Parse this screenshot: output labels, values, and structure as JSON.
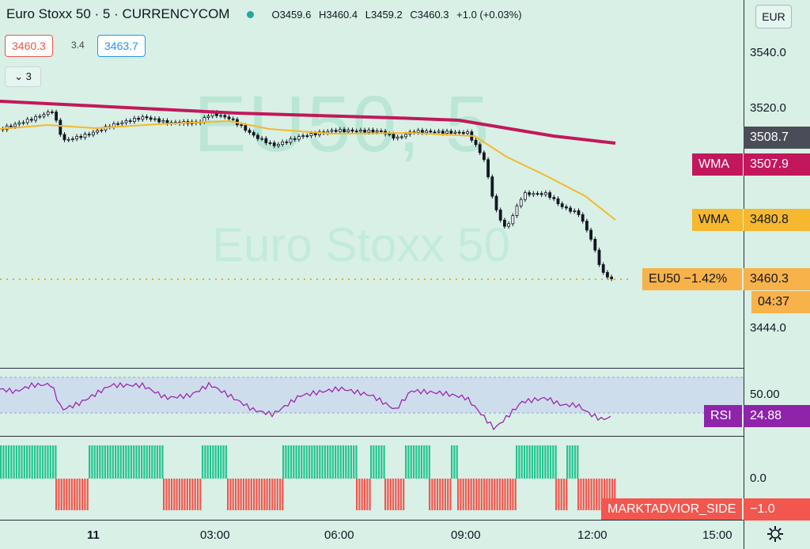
{
  "header": {
    "title": "Euro Stoxx 50 · 5 · CURRENCYCOM",
    "ohlc": {
      "o": "3459.6",
      "h": "3460.4",
      "l": "3459.2",
      "c": "3460.3",
      "change": "+1.0 (+0.03%)"
    },
    "o_label": "O",
    "h_label": "H",
    "l_label": "L",
    "c_label": "C"
  },
  "quote": {
    "bid": "3460.3",
    "spread": "3.4",
    "ask": "3463.7"
  },
  "collapse_label": "3",
  "watermark": {
    "symbol": "EU50, 5",
    "name": "Euro Stoxx 50"
  },
  "currency": "EUR",
  "price_axis": {
    "ticks": [
      "3540.0",
      "3520.0",
      "3444.0"
    ]
  },
  "tags": {
    "last_close": "3508.7",
    "wma1_label": "WMA",
    "wma1_value": "3507.9",
    "wma2_label": "WMA",
    "wma2_value": "3480.8",
    "price_label": "EU50 −1.42%",
    "price_value": "3460.3",
    "countdown": "04:37",
    "rsi_label": "RSI",
    "rsi_value": "24.88",
    "side_label": "MARKTADVIOR_SIDE",
    "side_value": "−1.0"
  },
  "rsi_axis": {
    "tick": "50.00"
  },
  "side_axis": {
    "tick": "0.0"
  },
  "time_axis": [
    "11",
    "03:00",
    "06:00",
    "09:00",
    "12:00",
    "15:00"
  ],
  "colors": {
    "bg": "#d8f0e6",
    "up": "#26a69a",
    "down": "#ef5350",
    "wma_slow": "#c2185b",
    "wma_fast": "#f5b82e",
    "rsi": "#9c27b0",
    "side_up": "#22c48f",
    "side_down": "#f3564e"
  }
}
